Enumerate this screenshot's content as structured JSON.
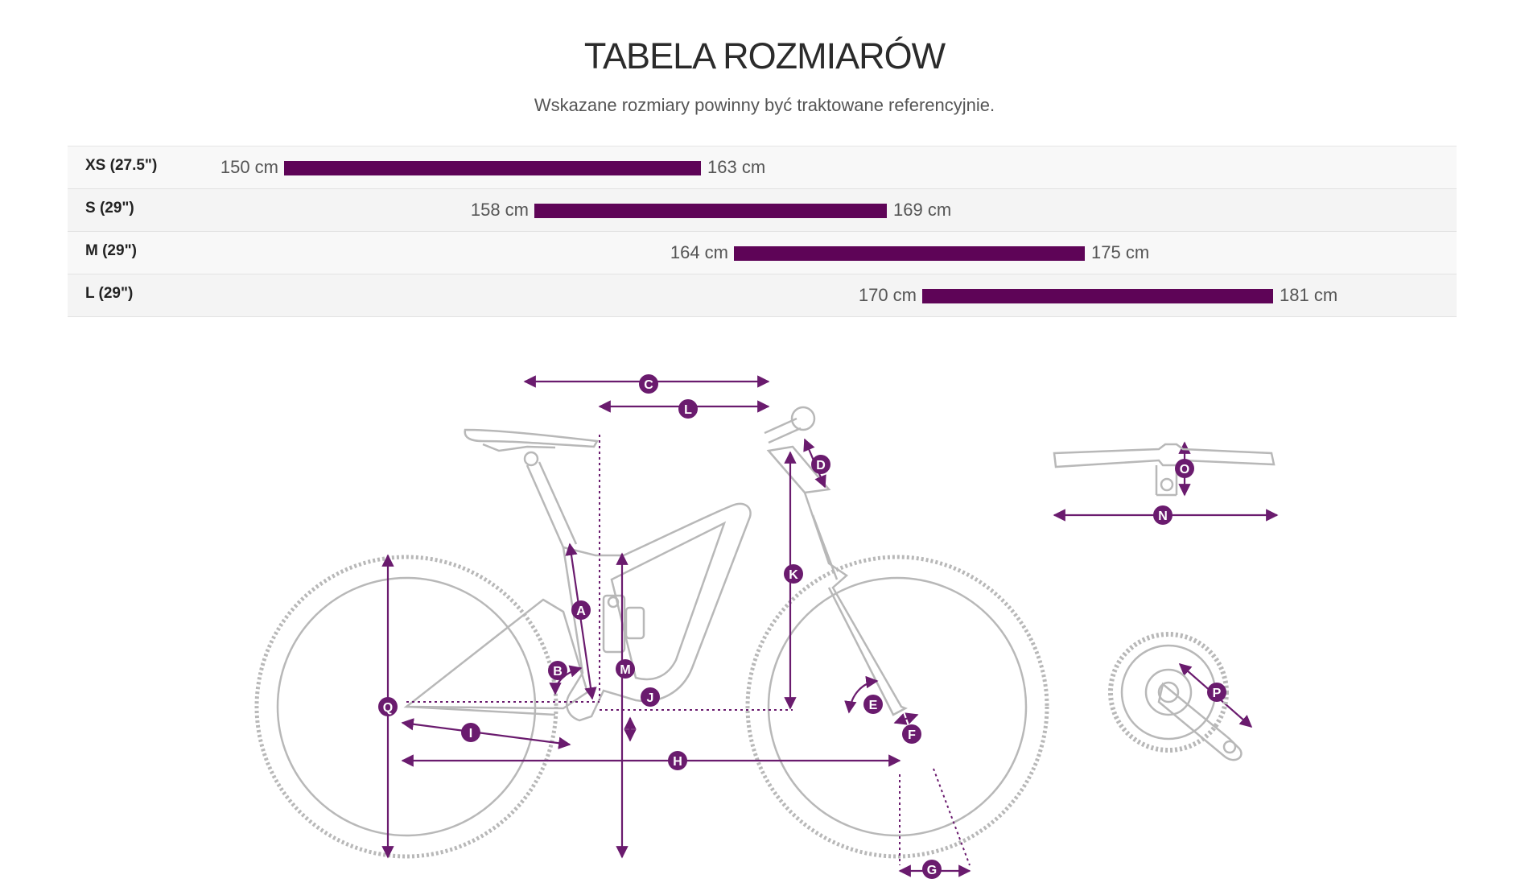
{
  "page": {
    "title": "TABELA ROZMIARÓW",
    "subtitle": "Wskazane rozmiary powinny być traktowane referencyjnie."
  },
  "size_table": {
    "rows": [
      {
        "size": "XS (27.5\")",
        "min": "150 cm",
        "max": "163 cm",
        "min_value": 150,
        "max_value": 163
      },
      {
        "size": "S (29\")",
        "min": "158 cm",
        "max": "169 cm",
        "min_value": 158,
        "max_value": 169
      },
      {
        "size": "M (29\")",
        "min": "164 cm",
        "max": "175 cm",
        "min_value": 164,
        "max_value": 175
      },
      {
        "size": "L (29\")",
        "min": "170 cm",
        "max": "181 cm",
        "min_value": 170,
        "max_value": 181
      }
    ],
    "bar_color": "#5e0457"
  },
  "diagram": {
    "accent_color": "#6a1b6e",
    "line_color": "#b8b8b8",
    "labels": {
      "A": "A",
      "B": "B",
      "C": "C",
      "D": "D",
      "E": "E",
      "F": "F",
      "G": "G",
      "H": "H",
      "I": "I",
      "J": "J",
      "K": "K",
      "L": "L",
      "M": "M",
      "N": "N",
      "O": "O",
      "P": "P",
      "Q": "Q"
    }
  }
}
